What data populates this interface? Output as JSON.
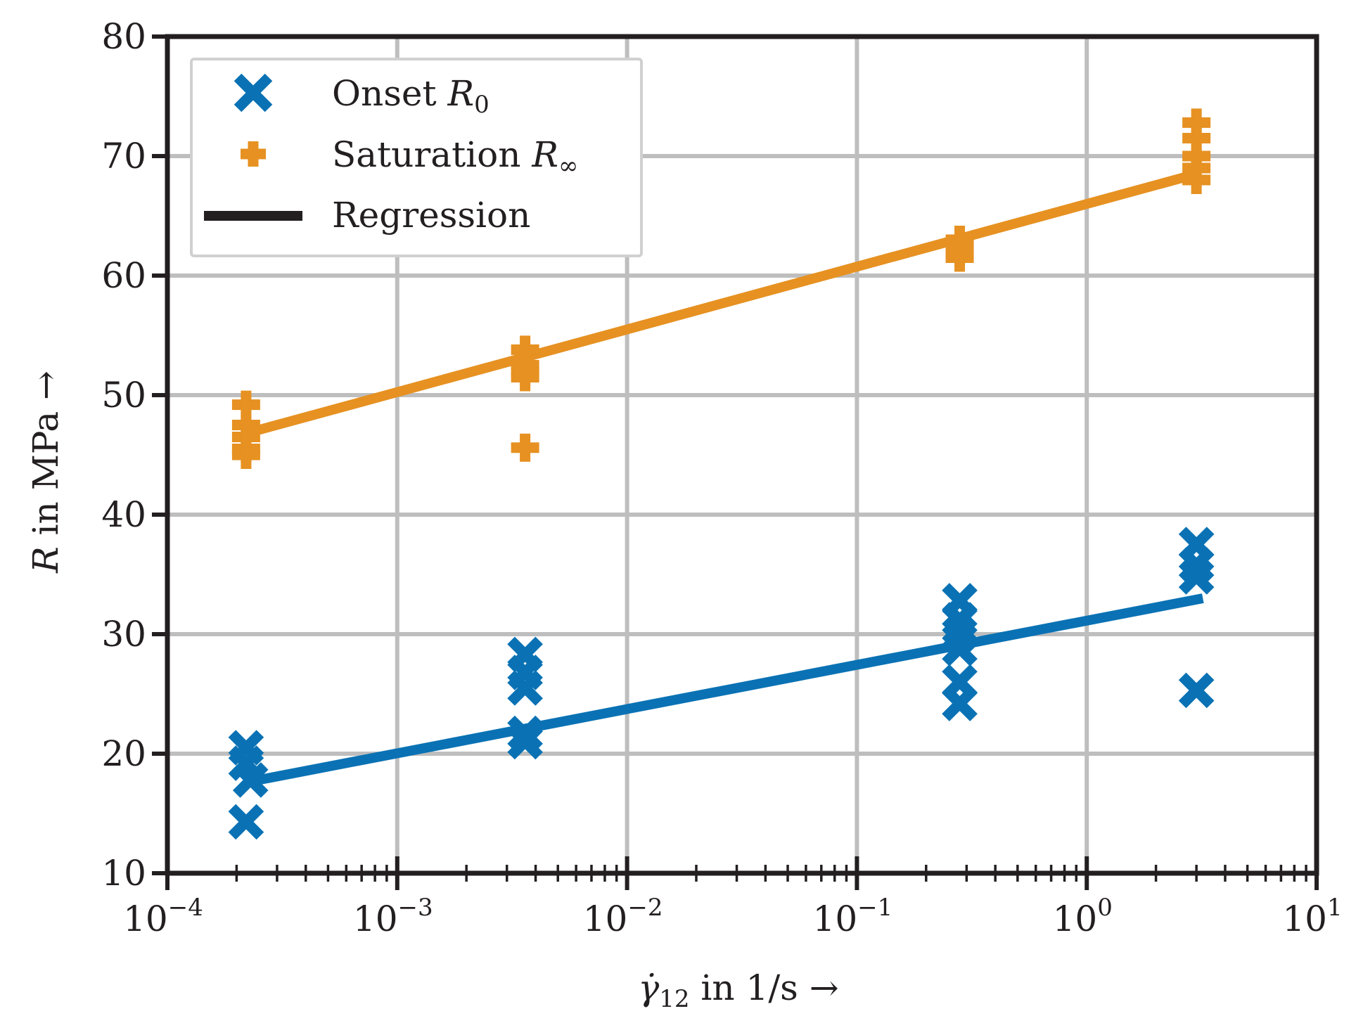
{
  "chart_data": {
    "type": "scatter",
    "title": "",
    "xscale": "log",
    "xlim": [
      0.0001,
      10
    ],
    "ylim": [
      10,
      80
    ],
    "grid": true,
    "legend_position": "top-left",
    "xlabel": {
      "symbol": "γ̇",
      "subscript": "12",
      "text": " in 1/s →"
    },
    "ylabel": {
      "symbol": "R",
      "text": " in MPa →"
    },
    "xticks": [
      {
        "value": 0.0001,
        "base": "10",
        "exp": "−4"
      },
      {
        "value": 0.001,
        "base": "10",
        "exp": "−3"
      },
      {
        "value": 0.01,
        "base": "10",
        "exp": "−2"
      },
      {
        "value": 0.1,
        "base": "10",
        "exp": "−1"
      },
      {
        "value": 1,
        "base": "10",
        "exp": "0"
      },
      {
        "value": 10,
        "base": "10",
        "exp": "1"
      }
    ],
    "yticks": [
      {
        "value": 10,
        "label": "10"
      },
      {
        "value": 20,
        "label": "20"
      },
      {
        "value": 30,
        "label": "30"
      },
      {
        "value": 40,
        "label": "40"
      },
      {
        "value": 50,
        "label": "50"
      },
      {
        "value": 60,
        "label": "60"
      },
      {
        "value": 70,
        "label": "70"
      },
      {
        "value": 80,
        "label": "80"
      }
    ],
    "series": [
      {
        "name": "Onset R0",
        "legend_text": "Onset ",
        "legend_symbol": "R",
        "legend_sub": "0",
        "marker": "x",
        "color": "#0a72b4",
        "points": [
          {
            "x": 0.00022,
            "y": 20.5
          },
          {
            "x": 0.00022,
            "y": 19.2
          },
          {
            "x": 0.00023,
            "y": 17.8
          },
          {
            "x": 0.00022,
            "y": 14.3
          },
          {
            "x": 0.0036,
            "y": 28.3
          },
          {
            "x": 0.0036,
            "y": 26.8
          },
          {
            "x": 0.0036,
            "y": 25.5
          },
          {
            "x": 0.0036,
            "y": 21.7
          },
          {
            "x": 0.0036,
            "y": 21.0
          },
          {
            "x": 0.28,
            "y": 32.8
          },
          {
            "x": 0.28,
            "y": 31.2
          },
          {
            "x": 0.28,
            "y": 30.0
          },
          {
            "x": 0.28,
            "y": 28.8
          },
          {
            "x": 0.28,
            "y": 26.0
          },
          {
            "x": 0.28,
            "y": 24.2
          },
          {
            "x": 3.0,
            "y": 37.5
          },
          {
            "x": 3.0,
            "y": 35.8
          },
          {
            "x": 3.0,
            "y": 34.8
          },
          {
            "x": 3.0,
            "y": 25.3
          }
        ]
      },
      {
        "name": "Saturation R∞",
        "legend_text": "Saturation ",
        "legend_symbol": "R",
        "legend_sub": "∞",
        "marker": "plus",
        "color": "#e69121",
        "points": [
          {
            "x": 0.00022,
            "y": 49.2
          },
          {
            "x": 0.00022,
            "y": 47.5
          },
          {
            "x": 0.00022,
            "y": 46.5
          },
          {
            "x": 0.00022,
            "y": 45.5
          },
          {
            "x": 0.00022,
            "y": 45.0
          },
          {
            "x": 0.0036,
            "y": 53.8
          },
          {
            "x": 0.0036,
            "y": 52.5
          },
          {
            "x": 0.0036,
            "y": 52.0
          },
          {
            "x": 0.0036,
            "y": 51.5
          },
          {
            "x": 0.0036,
            "y": 45.6
          },
          {
            "x": 0.28,
            "y": 63.0
          },
          {
            "x": 0.28,
            "y": 62.5
          },
          {
            "x": 0.28,
            "y": 62.0
          },
          {
            "x": 0.28,
            "y": 61.5
          },
          {
            "x": 3.0,
            "y": 72.8
          },
          {
            "x": 3.0,
            "y": 71.5
          },
          {
            "x": 3.0,
            "y": 70.0
          },
          {
            "x": 3.0,
            "y": 69.0
          },
          {
            "x": 3.0,
            "y": 68.0
          }
        ]
      },
      {
        "name": "Regression",
        "legend_text": "Regression",
        "marker": "line",
        "color": "#231f20",
        "lines": [
          {
            "color": "#e69121",
            "from": {
              "x": 0.00022,
              "y": 46.8
            },
            "to": {
              "x": 3.0,
              "y": 68.5
            }
          },
          {
            "color": "#0a72b4",
            "from": {
              "x": 0.00022,
              "y": 17.6
            },
            "to": {
              "x": 3.2,
              "y": 33.0
            }
          }
        ]
      }
    ]
  }
}
